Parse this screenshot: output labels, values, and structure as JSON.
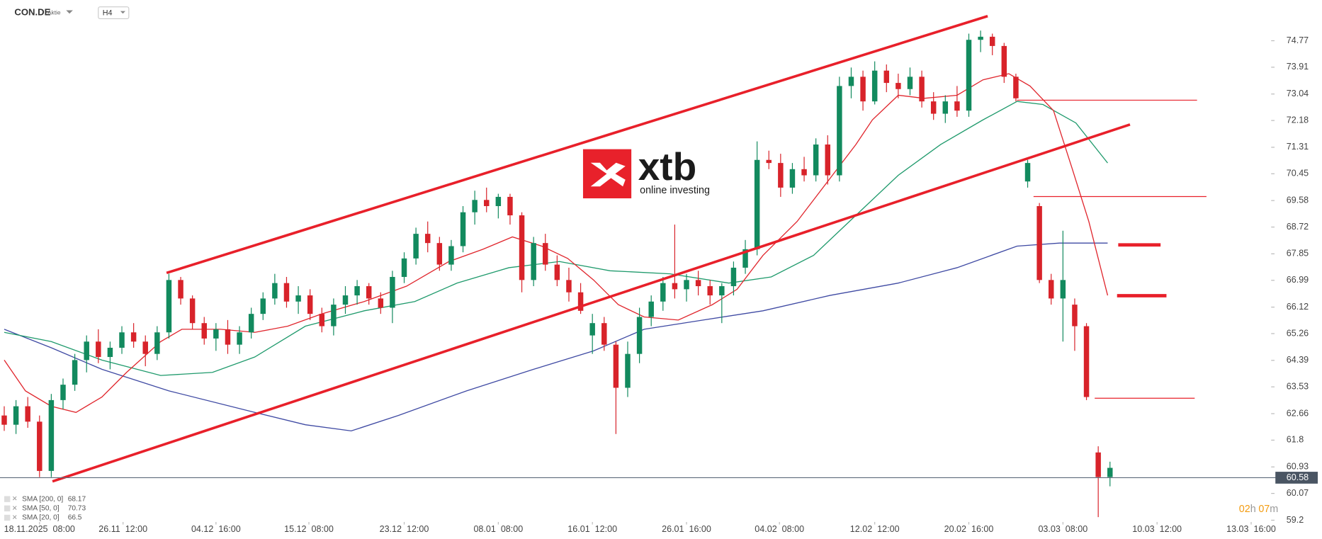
{
  "header": {
    "symbol": "CON.DE",
    "kind": "Aktie",
    "interval": "H4"
  },
  "logo": {
    "brand": "xtb",
    "tagline": "online investing"
  },
  "countdown": {
    "hours": "02",
    "h": "h",
    "minutes": "07",
    "m": "m"
  },
  "chart_data": {
    "type": "candlestick",
    "up_color": "#128a5e",
    "down_color": "#d8232a",
    "ohlc": [
      [
        62.6,
        62.9,
        62.1,
        62.3
      ],
      [
        62.3,
        63.1,
        62.0,
        62.9
      ],
      [
        62.9,
        63.2,
        62.2,
        62.4
      ],
      [
        62.4,
        62.6,
        60.6,
        60.8
      ],
      [
        60.8,
        63.3,
        60.6,
        63.1
      ],
      [
        63.1,
        63.8,
        62.8,
        63.6
      ],
      [
        63.6,
        64.6,
        63.4,
        64.4
      ],
      [
        64.4,
        65.2,
        64.0,
        65.0
      ],
      [
        65.0,
        65.4,
        64.3,
        64.5
      ],
      [
        64.5,
        65.0,
        64.1,
        64.8
      ],
      [
        64.8,
        65.5,
        64.6,
        65.3
      ],
      [
        65.3,
        65.6,
        64.8,
        65.0
      ],
      [
        65.0,
        65.2,
        64.2,
        64.6
      ],
      [
        64.6,
        65.5,
        64.4,
        65.3
      ],
      [
        65.3,
        67.2,
        65.1,
        67.0
      ],
      [
        67.0,
        67.1,
        66.2,
        66.4
      ],
      [
        66.4,
        66.5,
        65.4,
        65.6
      ],
      [
        65.6,
        65.8,
        64.9,
        65.1
      ],
      [
        65.1,
        65.6,
        64.7,
        65.4
      ],
      [
        65.4,
        65.7,
        64.6,
        64.9
      ],
      [
        64.9,
        65.5,
        64.6,
        65.3
      ],
      [
        65.3,
        66.1,
        65.1,
        65.9
      ],
      [
        65.9,
        66.6,
        65.7,
        66.4
      ],
      [
        66.4,
        67.2,
        66.2,
        66.9
      ],
      [
        66.9,
        67.1,
        66.1,
        66.3
      ],
      [
        66.3,
        66.8,
        65.9,
        66.5
      ],
      [
        66.5,
        66.7,
        65.7,
        65.9
      ],
      [
        65.9,
        66.1,
        65.3,
        65.5
      ],
      [
        65.5,
        66.4,
        65.2,
        66.2
      ],
      [
        66.2,
        66.8,
        65.9,
        66.5
      ],
      [
        66.5,
        67.0,
        66.2,
        66.8
      ],
      [
        66.8,
        66.9,
        66.2,
        66.4
      ],
      [
        66.4,
        66.6,
        65.9,
        66.1
      ],
      [
        66.1,
        67.3,
        65.6,
        67.1
      ],
      [
        67.1,
        67.9,
        66.9,
        67.7
      ],
      [
        67.7,
        68.7,
        67.5,
        68.5
      ],
      [
        68.5,
        68.9,
        67.9,
        68.2
      ],
      [
        68.2,
        68.4,
        67.3,
        67.5
      ],
      [
        67.5,
        68.3,
        67.3,
        68.1
      ],
      [
        68.1,
        69.4,
        67.9,
        69.2
      ],
      [
        69.2,
        69.9,
        68.8,
        69.6
      ],
      [
        69.6,
        70.0,
        69.2,
        69.4
      ],
      [
        69.4,
        69.8,
        69.0,
        69.7
      ],
      [
        69.7,
        69.8,
        68.8,
        69.1
      ],
      [
        69.1,
        69.2,
        66.6,
        67.0
      ],
      [
        67.0,
        68.4,
        66.8,
        68.2
      ],
      [
        68.2,
        68.5,
        67.3,
        67.5
      ],
      [
        67.5,
        67.8,
        66.8,
        67.0
      ],
      [
        67.0,
        67.4,
        66.3,
        66.6
      ],
      [
        66.6,
        66.9,
        65.9,
        66.0
      ],
      [
        65.2,
        65.9,
        64.6,
        65.6
      ],
      [
        65.6,
        65.8,
        64.7,
        64.9
      ],
      [
        64.9,
        65.0,
        62.0,
        63.5
      ],
      [
        63.5,
        65.0,
        63.2,
        64.6
      ],
      [
        64.6,
        66.1,
        64.3,
        65.8
      ],
      [
        65.8,
        66.5,
        65.5,
        66.3
      ],
      [
        66.3,
        67.1,
        66.0,
        66.9
      ],
      [
        66.9,
        68.8,
        66.4,
        66.7
      ],
      [
        66.7,
        67.2,
        66.3,
        67.0
      ],
      [
        67.0,
        67.3,
        66.5,
        66.8
      ],
      [
        66.8,
        67.0,
        66.2,
        66.5
      ],
      [
        66.5,
        66.9,
        65.6,
        66.8
      ],
      [
        66.8,
        67.6,
        66.5,
        67.4
      ],
      [
        67.4,
        68.3,
        67.2,
        68.0
      ],
      [
        68.0,
        71.5,
        67.8,
        70.9
      ],
      [
        70.9,
        71.2,
        70.6,
        70.8
      ],
      [
        70.8,
        71.1,
        69.7,
        70.0
      ],
      [
        70.0,
        70.8,
        69.8,
        70.6
      ],
      [
        70.6,
        71.0,
        70.2,
        70.4
      ],
      [
        70.4,
        71.6,
        70.2,
        71.4
      ],
      [
        71.4,
        71.7,
        70.1,
        70.4
      ],
      [
        70.4,
        73.6,
        70.2,
        73.3
      ],
      [
        73.3,
        73.9,
        72.9,
        73.6
      ],
      [
        73.6,
        73.8,
        72.5,
        72.8
      ],
      [
        72.8,
        74.1,
        72.7,
        73.8
      ],
      [
        73.8,
        74.0,
        73.1,
        73.4
      ],
      [
        73.4,
        73.7,
        72.9,
        73.2
      ],
      [
        73.2,
        73.9,
        73.0,
        73.6
      ],
      [
        73.6,
        73.8,
        72.6,
        72.8
      ],
      [
        72.8,
        73.1,
        72.2,
        72.4
      ],
      [
        72.4,
        73.0,
        72.1,
        72.8
      ],
      [
        72.8,
        73.3,
        72.3,
        72.5
      ],
      [
        72.5,
        75.0,
        72.3,
        74.8
      ],
      [
        74.8,
        75.1,
        74.4,
        74.9
      ],
      [
        74.9,
        75.0,
        74.3,
        74.6
      ],
      [
        74.6,
        74.7,
        73.4,
        73.6
      ],
      [
        73.6,
        73.7,
        72.8,
        72.9
      ],
      [
        70.2,
        70.9,
        70.0,
        70.8
      ],
      [
        69.4,
        69.5,
        66.9,
        67.0
      ],
      [
        67.0,
        67.2,
        66.2,
        66.4
      ],
      [
        66.4,
        68.6,
        65.0,
        67.0
      ],
      [
        66.2,
        66.4,
        64.7,
        65.5
      ],
      [
        65.5,
        65.6,
        63.1,
        63.2
      ],
      [
        61.4,
        61.6,
        59.3,
        60.6
      ],
      [
        60.6,
        61.1,
        60.3,
        60.9
      ]
    ],
    "sma": [
      {
        "name": "SMA [200, 0]",
        "last": 68.17,
        "color": "#3f4aa3",
        "x": [
          0,
          4,
          8.3,
          14,
          21.3,
          25.6,
          29.5,
          33.5,
          39.3,
          45,
          50.1,
          54.4,
          59.4,
          64.5,
          70.2,
          76,
          81,
          86.1,
          89.7,
          93.8
        ],
        "values": [
          65.4,
          64.8,
          64.1,
          63.4,
          62.7,
          62.3,
          62.1,
          62.6,
          63.4,
          64.1,
          64.7,
          65.4,
          65.7,
          66.0,
          66.5,
          66.9,
          67.4,
          68.1,
          68.2,
          68.2
        ]
      },
      {
        "name": "SMA [50, 0]",
        "last": 70.73,
        "color": "#1f9a6c",
        "x": [
          0,
          4,
          8.3,
          13.3,
          17.7,
          21.3,
          25.6,
          30.6,
          34.9,
          38.5,
          42.9,
          47.2,
          51.5,
          56.6,
          61.6,
          65.2,
          68.8,
          72.4,
          76,
          79.6,
          83.2,
          86.1,
          88.3,
          91.1,
          93.8
        ],
        "values": [
          65.3,
          65.0,
          64.4,
          63.9,
          64.0,
          64.5,
          65.5,
          66.0,
          66.3,
          66.9,
          67.4,
          67.6,
          67.3,
          67.2,
          66.9,
          67.1,
          67.8,
          69.1,
          70.4,
          71.4,
          72.2,
          72.8,
          72.7,
          72.1,
          70.8
        ]
      },
      {
        "name": "SMA [20, 0]",
        "last": 66.5,
        "color": "#e0262d",
        "x": [
          0,
          1.8,
          4,
          6.1,
          8.3,
          10.4,
          13.3,
          15.1,
          18.4,
          21.3,
          24.1,
          27,
          30.6,
          34.2,
          37.8,
          40.7,
          43.2,
          45.7,
          47.9,
          50.1,
          52.2,
          54.4,
          57.3,
          60.2,
          62.3,
          64.5,
          67.4,
          70.2,
          72.4,
          73.8,
          76,
          78.2,
          81,
          83.2,
          85.4,
          87.2,
          89.2,
          90.8,
          92.2,
          93.8
        ],
        "values": [
          64.4,
          63.4,
          62.9,
          62.7,
          63.2,
          64.0,
          65.0,
          65.4,
          65.4,
          65.3,
          65.5,
          65.9,
          66.3,
          66.8,
          67.6,
          68.0,
          68.4,
          68.1,
          67.7,
          67.0,
          66.2,
          65.8,
          65.7,
          66.2,
          66.7,
          67.8,
          68.9,
          70.3,
          71.4,
          72.2,
          73.0,
          72.9,
          73.0,
          73.5,
          73.7,
          73.3,
          72.5,
          70.6,
          68.9,
          66.5
        ]
      }
    ],
    "trendlines": [
      {
        "color": "#e8202a",
        "x": [
          13.8,
          83.6
        ],
        "values": [
          67.23,
          75.57
        ]
      },
      {
        "color": "#e8202a",
        "x": [
          4.1,
          95.7
        ],
        "values": [
          60.46,
          72.05
        ]
      }
    ],
    "levels": [
      {
        "color": "#e8202a",
        "width": 1,
        "x": [
          86.1,
          101.4
        ],
        "value": 72.84
      },
      {
        "color": "#e8202a",
        "width": 1,
        "x": [
          87.5,
          102.2
        ],
        "value": 69.71
      },
      {
        "color": "#e8202a",
        "width": 1,
        "x": [
          92.7,
          101.2
        ],
        "value": 63.16
      },
      {
        "color": "#e8202a",
        "width": 4,
        "x": [
          94.7,
          98.3
        ],
        "value": 68.14
      },
      {
        "color": "#e8202a",
        "width": 4,
        "x": [
          94.6,
          98.8
        ],
        "value": 66.49
      }
    ],
    "last_price": 60.58,
    "xlim": [
      -0.36,
      107.7
    ],
    "xticks": [
      {
        "value": 3,
        "label": "18.11.2025  08:00"
      },
      {
        "value": 10.1,
        "label": "26.11  12:00"
      },
      {
        "value": 18,
        "label": "04.12  16:00"
      },
      {
        "value": 25.9,
        "label": "15.12  08:00"
      },
      {
        "value": 34,
        "label": "23.12  12:00"
      },
      {
        "value": 42,
        "label": "08.01  08:00"
      },
      {
        "value": 50,
        "label": "16.01  12:00"
      },
      {
        "value": 58,
        "label": "26.01  16:00"
      },
      {
        "value": 65.9,
        "label": "04.02  08:00"
      },
      {
        "value": 74,
        "label": "12.02  12:00"
      },
      {
        "value": 82,
        "label": "20.02  16:00"
      },
      {
        "value": 90,
        "label": "03.03  08:00"
      },
      {
        "value": 98,
        "label": "10.03  12:00"
      },
      {
        "value": 106,
        "label": "13.03  16:00"
      }
    ],
    "ylim": [
      59.17,
      76.09
    ],
    "yticks": [
      74.77,
      73.91,
      73.04,
      72.18,
      71.31,
      70.45,
      69.58,
      68.72,
      67.85,
      66.99,
      66.12,
      65.26,
      64.39,
      63.53,
      62.66,
      61.8,
      60.93,
      60.07,
      59.2
    ]
  }
}
